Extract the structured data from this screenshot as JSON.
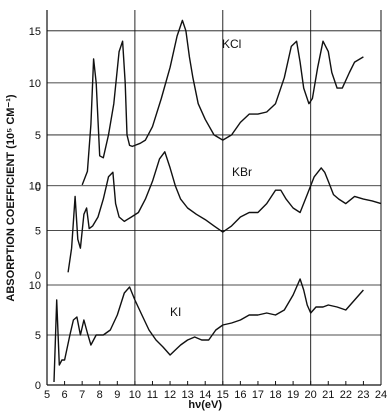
{
  "chart_data": {
    "type": "line",
    "title": "",
    "xlabel": "hν(eV)",
    "ylabel": "ABSORPTION COEFFICIENT (10⁵ CM⁻¹)",
    "xlim": [
      5,
      24
    ],
    "x_ticks": [
      5,
      6,
      7,
      8,
      9,
      10,
      11,
      12,
      13,
      14,
      15,
      16,
      17,
      18,
      19,
      20,
      21,
      22,
      23,
      24
    ],
    "x_tick_labels": [
      "5",
      "6",
      "7",
      "8",
      "9",
      "10",
      "11",
      "12",
      "13",
      "14",
      "15",
      "16",
      "17",
      "18",
      "19",
      "20",
      "21",
      "22",
      "23",
      "24"
    ],
    "grid": "vertical lines at 10, 15, 20; horizontal lines at 5, 10, 15 within each panel",
    "color": "#111111",
    "panels": [
      {
        "label": "KCl",
        "ylim": [
          0,
          17
        ],
        "y_ticks": [
          5,
          10,
          15
        ],
        "y_tick_labels": [
          "5",
          "10",
          "15"
        ],
        "x": [
          7.0,
          7.3,
          7.5,
          7.65,
          7.8,
          8.0,
          8.2,
          8.5,
          8.8,
          9.1,
          9.3,
          9.45,
          9.55,
          9.7,
          9.85,
          10.0,
          10.3,
          10.6,
          11.0,
          11.5,
          12.0,
          12.4,
          12.7,
          12.9,
          13.1,
          13.3,
          13.6,
          14.0,
          14.5,
          15.0,
          15.5,
          16.0,
          16.5,
          17.0,
          17.5,
          18.0,
          18.5,
          18.9,
          19.2,
          19.4,
          19.6,
          19.9,
          20.1,
          20.4,
          20.7,
          21.0,
          21.2,
          21.5,
          21.8,
          22.2,
          22.5,
          23.0
        ],
        "values": [
          0.2,
          1.5,
          6.0,
          12.3,
          10.0,
          3.0,
          2.8,
          5.0,
          8.0,
          13.0,
          14.0,
          10.0,
          5.0,
          4.0,
          3.9,
          4.0,
          4.2,
          4.5,
          5.8,
          8.5,
          11.5,
          14.5,
          16.0,
          15.0,
          12.5,
          10.5,
          8.0,
          6.5,
          5.0,
          4.5,
          5.0,
          6.2,
          7.0,
          7.0,
          7.2,
          8.0,
          10.5,
          13.5,
          14.0,
          12.0,
          9.5,
          8.0,
          8.5,
          11.5,
          14.0,
          13.0,
          11.0,
          9.5,
          9.5,
          11.0,
          12.0,
          12.5
        ]
      },
      {
        "label": "KBr",
        "ylim": [
          0,
          14
        ],
        "y_ticks": [
          5,
          10
        ],
        "y_tick_labels": [
          "5",
          "10"
        ],
        "x": [
          6.2,
          6.4,
          6.6,
          6.75,
          6.9,
          7.1,
          7.25,
          7.4,
          7.6,
          7.9,
          8.2,
          8.5,
          8.75,
          8.9,
          9.1,
          9.4,
          9.8,
          10.2,
          10.6,
          11.0,
          11.4,
          11.7,
          12.0,
          12.3,
          12.6,
          13.0,
          13.5,
          14.0,
          14.5,
          15.0,
          15.5,
          16.0,
          16.5,
          17.0,
          17.5,
          18.0,
          18.3,
          18.6,
          19.0,
          19.4,
          19.8,
          20.2,
          20.6,
          20.8,
          21.0,
          21.3,
          21.6,
          22.0,
          22.5,
          23.0,
          23.5,
          24.0
        ],
        "values": [
          0.3,
          3.0,
          8.8,
          4.0,
          3.0,
          6.8,
          7.5,
          5.2,
          5.5,
          6.5,
          8.5,
          11.0,
          11.5,
          8.0,
          6.5,
          6.0,
          6.5,
          7.0,
          8.5,
          10.5,
          13.0,
          13.8,
          12.0,
          10.0,
          8.5,
          7.5,
          6.8,
          6.2,
          5.5,
          4.8,
          5.5,
          6.5,
          7.0,
          7.0,
          8.0,
          9.5,
          9.5,
          8.5,
          7.5,
          7.0,
          9.0,
          11.0,
          12.0,
          11.5,
          10.5,
          9.0,
          8.5,
          8.0,
          8.8,
          8.5,
          8.3,
          8.0
        ]
      },
      {
        "label": "KI",
        "ylim": [
          0,
          11
        ],
        "y_ticks": [
          5,
          10
        ],
        "y_tick_labels": [
          "5",
          "10"
        ],
        "x": [
          5.4,
          5.55,
          5.7,
          5.85,
          6.0,
          6.3,
          6.5,
          6.7,
          6.9,
          7.1,
          7.3,
          7.5,
          7.8,
          8.2,
          8.6,
          9.0,
          9.4,
          9.7,
          10.0,
          10.4,
          10.8,
          11.2,
          11.6,
          12.0,
          12.3,
          12.6,
          13.0,
          13.4,
          13.8,
          14.2,
          14.6,
          15.0,
          15.5,
          16.0,
          16.5,
          17.0,
          17.5,
          18.0,
          18.5,
          19.0,
          19.4,
          19.6,
          19.8,
          20.0,
          20.3,
          20.7,
          21.0,
          21.5,
          22.0,
          22.5,
          23.0
        ],
        "values": [
          0.3,
          8.5,
          2.0,
          2.5,
          2.5,
          5.0,
          6.5,
          6.8,
          5.0,
          6.5,
          5.2,
          4.0,
          5.0,
          5.0,
          5.5,
          7.0,
          9.2,
          9.8,
          8.5,
          7.0,
          5.5,
          4.5,
          3.8,
          3.0,
          3.5,
          4.0,
          4.5,
          4.8,
          4.5,
          4.5,
          5.5,
          6.0,
          6.2,
          6.5,
          7.0,
          7.0,
          7.2,
          7.0,
          7.5,
          9.0,
          10.6,
          9.5,
          8.0,
          7.2,
          7.8,
          7.8,
          8.0,
          7.8,
          7.5,
          8.5,
          9.5
        ]
      }
    ]
  }
}
